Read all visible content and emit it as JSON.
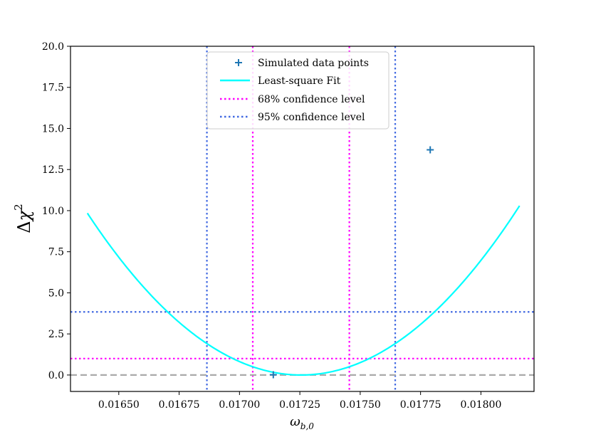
{
  "chart_data": {
    "type": "line",
    "xlabel": {
      "symbol": "ω",
      "subscript": "b,0"
    },
    "ylabel": {
      "prefix": "Δ",
      "symbol": "χ",
      "superscript": "2"
    },
    "xlim": [
      0.0163,
      0.01822
    ],
    "ylim": [
      -1.0,
      20.0
    ],
    "x_ticks": [
      {
        "value": 0.0165,
        "label": "0.01650"
      },
      {
        "value": 0.01675,
        "label": "0.01675"
      },
      {
        "value": 0.017,
        "label": "0.01700"
      },
      {
        "value": 0.01725,
        "label": "0.01725"
      },
      {
        "value": 0.0175,
        "label": "0.01750"
      },
      {
        "value": 0.01775,
        "label": "0.01775"
      },
      {
        "value": 0.018,
        "label": "0.01800"
      }
    ],
    "y_ticks": [
      {
        "value": 0.0,
        "label": "0.0"
      },
      {
        "value": 2.5,
        "label": "2.5"
      },
      {
        "value": 5.0,
        "label": "5.0"
      },
      {
        "value": 7.5,
        "label": "7.5"
      },
      {
        "value": 10.0,
        "label": "10.0"
      },
      {
        "value": 12.5,
        "label": "12.5"
      },
      {
        "value": 15.0,
        "label": "15.0"
      },
      {
        "value": 17.5,
        "label": "17.5"
      },
      {
        "value": 20.0,
        "label": "20.0"
      }
    ],
    "grid": false,
    "legend_position": "top-center",
    "series": [
      {
        "name": "Simulated data points",
        "kind": "scatter",
        "marker": "plus",
        "color": "#1f77b4",
        "points": [
          {
            "x": 0.01714,
            "y": 0.02
          },
          {
            "x": 0.01779,
            "y": 13.7
          }
        ]
      },
      {
        "name": "Least-square Fit",
        "kind": "curve",
        "color": "#00ffff",
        "model": "quadratic",
        "vertex_x": 0.017255,
        "vertex_y": 0.0,
        "curvature": 12570000,
        "x_range": [
          0.01637,
          0.01816
        ]
      },
      {
        "name": "68% confidence level",
        "kind": "dotted",
        "color": "#ff00ff",
        "hline": 1.0,
        "vlines": [
          0.017055,
          0.017455
        ]
      },
      {
        "name": "95% confidence level",
        "kind": "dotted",
        "color": "#4169e1",
        "hline": 3.84,
        "vlines": [
          0.016865,
          0.017645
        ]
      }
    ],
    "reference_line": {
      "y": 0.0,
      "style": "dashed",
      "color": "#aaaaaa"
    }
  }
}
